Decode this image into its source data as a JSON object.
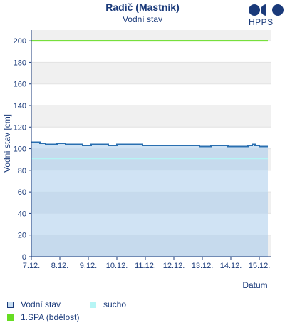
{
  "header": {
    "title": "Radíč (Mastník)",
    "subtitle": "Vodní stav",
    "logo_text": "HPPS"
  },
  "legend": {
    "items": [
      {
        "label": "Vodní stav",
        "color": "#c8def2",
        "border": "#1a3a7a"
      },
      {
        "label": "sucho",
        "color": "#b6f5f5",
        "border": "#b6f5f5"
      },
      {
        "label": "1.SPA (bdělost)",
        "color": "#66dd22",
        "border": "#66dd22"
      }
    ]
  },
  "chart_data": {
    "type": "area",
    "title": "Radíč (Mastník)",
    "subtitle": "Vodní stav",
    "xlabel": "Datum",
    "ylabel": "Vodní stav [cm]",
    "ylim": [
      0,
      210
    ],
    "xlim": [
      0,
      8.4
    ],
    "yticks": [
      0,
      20,
      40,
      60,
      80,
      100,
      120,
      140,
      160,
      180,
      200
    ],
    "xtick_labels": [
      "7.12.",
      "8.12.",
      "9.12.",
      "10.12.",
      "11.12.",
      "12.12.",
      "13.12.",
      "14.12.",
      "15.12."
    ],
    "x_unit": "days since 7.12.",
    "grid": "horizontal bands",
    "series": [
      {
        "name": "Vodní stav",
        "color": "#2a6fb0",
        "fill": "#c8def2",
        "x": [
          0.0,
          0.3,
          0.5,
          0.9,
          1.2,
          1.8,
          2.1,
          2.6,
          2.7,
          3.0,
          3.5,
          3.9,
          4.5,
          5.0,
          5.5,
          5.9,
          6.3,
          6.5,
          6.9,
          7.3,
          7.6,
          7.75,
          7.85,
          8.0,
          8.3
        ],
        "values": [
          106,
          105,
          104,
          105,
          104,
          103,
          104,
          104,
          103,
          104,
          104,
          103,
          103,
          103,
          103,
          102,
          103,
          103,
          102,
          102,
          103,
          104,
          103,
          102,
          102
        ]
      },
      {
        "name": "1.SPA (bdělost)",
        "color": "#66dd22",
        "x": [
          0.0,
          8.3
        ],
        "values": [
          200,
          200
        ]
      },
      {
        "name": "sucho",
        "color": "#b6f5f5",
        "x": [
          0.0,
          8.3
        ],
        "values": [
          91,
          91
        ]
      }
    ]
  }
}
